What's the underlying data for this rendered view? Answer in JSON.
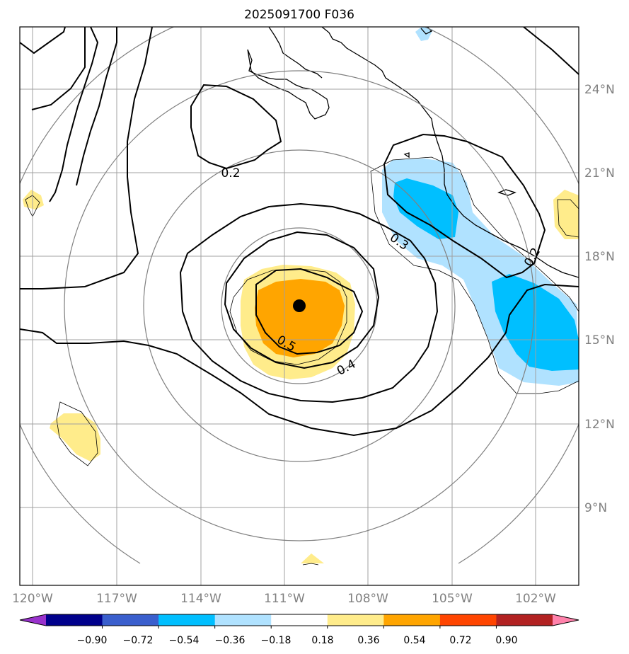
{
  "title": "2025091700 F036",
  "lon_labels": [
    "120°W",
    "117°W",
    "114°W",
    "111°W",
    "108°W",
    "105°W",
    "102°W"
  ],
  "lat_labels": [
    "24°N",
    "21°N",
    "18°N",
    "15°N",
    "12°N",
    "9°N"
  ],
  "colorbar": {
    "ticks": [
      "−0.90",
      "−0.72",
      "−0.54",
      "−0.36",
      "−0.18",
      "0.18",
      "0.36",
      "0.54",
      "0.72",
      "0.90"
    ],
    "colors": [
      "#9932cc",
      "#00008b",
      "#3a5fcd",
      "#00bfff",
      "#b0e2ff",
      "#ffffff",
      "#ffec8b",
      "#ffa500",
      "#ff4500",
      "#b22222",
      "#ff82ab"
    ]
  },
  "contour_labels": [
    "0.2",
    "0.3",
    "0.4",
    "0.5",
    "0.2"
  ],
  "colors": {
    "positive_light": "#ffec8b",
    "positive_mid": "#ffa500",
    "negative_light": "#b0e2ff",
    "negative_mid": "#00bfff",
    "grid": "#a0a0a0",
    "range_rings": "#808080"
  },
  "storm_center_icon": "filled-circle-icon"
}
